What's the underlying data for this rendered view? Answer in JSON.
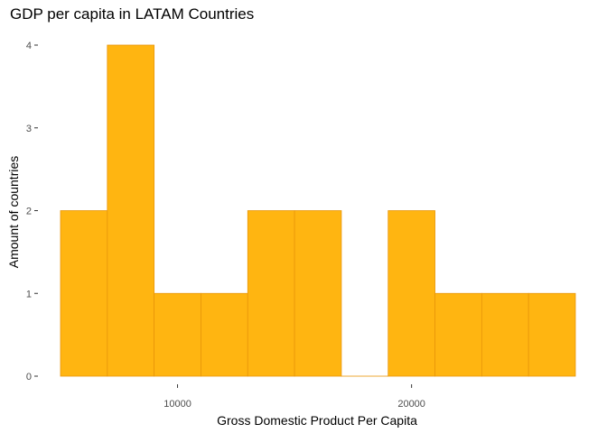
{
  "chart_data": {
    "type": "bar",
    "title": "GDP per capita in LATAM Countries",
    "xlabel": "Gross Domestic Product Per Capita",
    "ylabel": "Amount of countries",
    "bins": [
      {
        "x0": 5000,
        "x1": 7000,
        "count": 2
      },
      {
        "x0": 7000,
        "x1": 9000,
        "count": 4
      },
      {
        "x0": 9000,
        "x1": 11000,
        "count": 1
      },
      {
        "x0": 11000,
        "x1": 13000,
        "count": 1
      },
      {
        "x0": 13000,
        "x1": 15000,
        "count": 2
      },
      {
        "x0": 15000,
        "x1": 17000,
        "count": 2
      },
      {
        "x0": 17000,
        "x1": 19000,
        "count": 0
      },
      {
        "x0": 19000,
        "x1": 21000,
        "count": 2
      },
      {
        "x0": 21000,
        "x1": 23000,
        "count": 1
      },
      {
        "x0": 23000,
        "x1": 25000,
        "count": 1
      },
      {
        "x0": 25000,
        "x1": 27000,
        "count": 1
      }
    ],
    "xlim": [
      5000,
      27000
    ],
    "ylim": [
      0,
      4
    ],
    "x_ticks": [
      10000,
      20000
    ],
    "y_ticks": [
      0,
      1,
      2,
      3,
      4
    ],
    "grid": false,
    "fill_color": "#FFB511",
    "edge_color": "#E8960A"
  }
}
